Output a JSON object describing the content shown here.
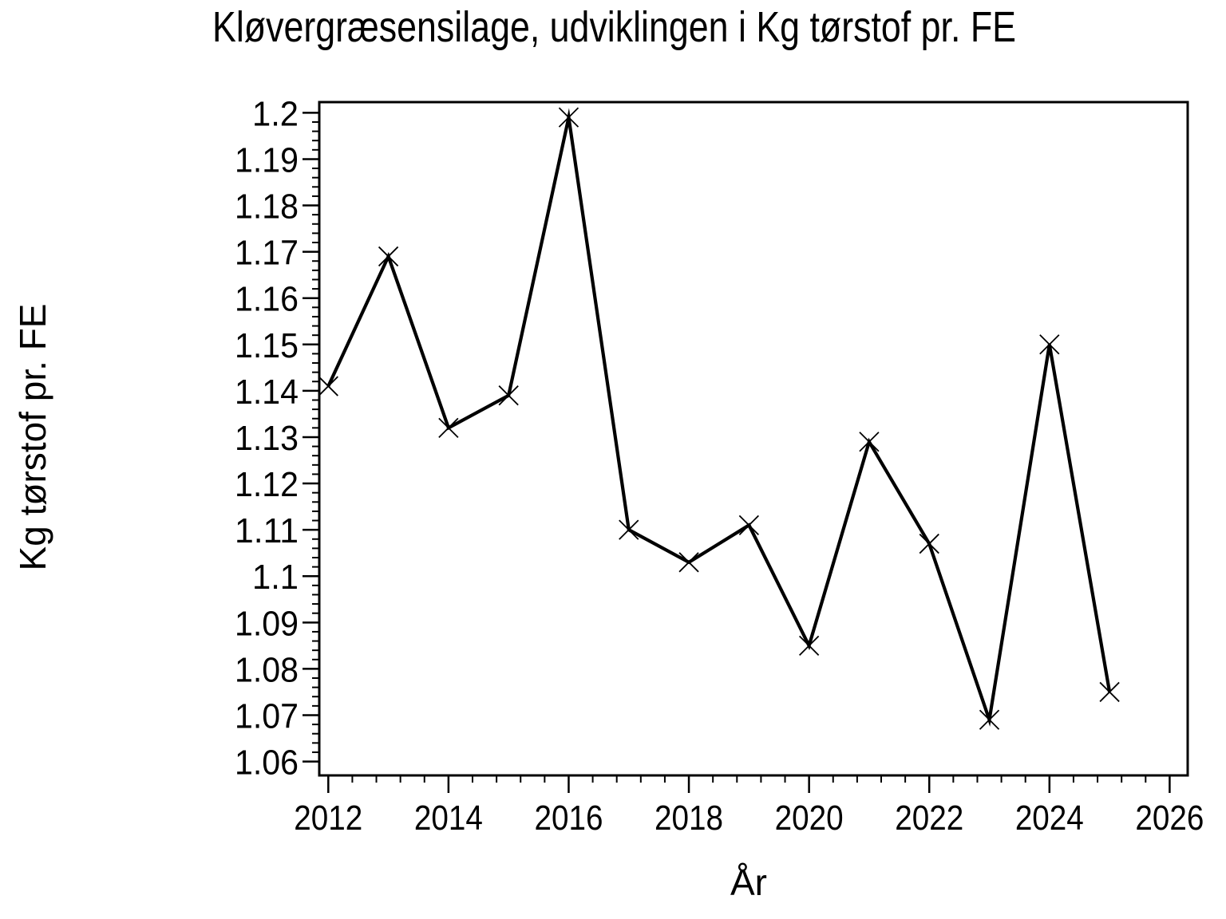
{
  "chart_data": {
    "type": "line",
    "title": "Kløvergræsensilage, udviklingen i Kg tørstof pr. FE",
    "xlabel": "År",
    "ylabel": "Kg tørstof pr. FE",
    "x": [
      2012,
      2013,
      2014,
      2015,
      2016,
      2017,
      2018,
      2019,
      2020,
      2021,
      2022,
      2023,
      2024,
      2025
    ],
    "values": [
      1.141,
      1.169,
      1.132,
      1.139,
      1.199,
      1.11,
      1.103,
      1.111,
      1.085,
      1.129,
      1.107,
      1.069,
      1.15,
      1.075
    ],
    "series": [
      {
        "name": "Kg tørstof pr. FE",
        "values": [
          1.141,
          1.169,
          1.132,
          1.139,
          1.199,
          1.11,
          1.103,
          1.111,
          1.085,
          1.129,
          1.107,
          1.069,
          1.15,
          1.075
        ]
      }
    ],
    "x_major_ticks": [
      2012,
      2014,
      2016,
      2018,
      2020,
      2022,
      2024,
      2026
    ],
    "x_tick_labels": [
      "2012",
      "2014",
      "2016",
      "2018",
      "2020",
      "2022",
      "2024",
      "2026"
    ],
    "y_major_ticks": [
      1.06,
      1.07,
      1.08,
      1.09,
      1.1,
      1.11,
      1.12,
      1.13,
      1.14,
      1.15,
      1.16,
      1.17,
      1.18,
      1.19,
      1.2
    ],
    "y_tick_labels": [
      "1.06",
      "1.07",
      "1.08",
      "1.09",
      "1.1",
      "1.11",
      "1.12",
      "1.13",
      "1.14",
      "1.15",
      "1.16",
      "1.17",
      "1.18",
      "1.19",
      "1.2"
    ],
    "minor_ticks_between_majors": 4,
    "xlim": [
      2011.85,
      2026.3
    ],
    "ylim": [
      1.057,
      1.2023
    ],
    "grid": false,
    "legend": null,
    "marker": "x",
    "line_color": "#000000",
    "background_color": "#ffffff"
  }
}
